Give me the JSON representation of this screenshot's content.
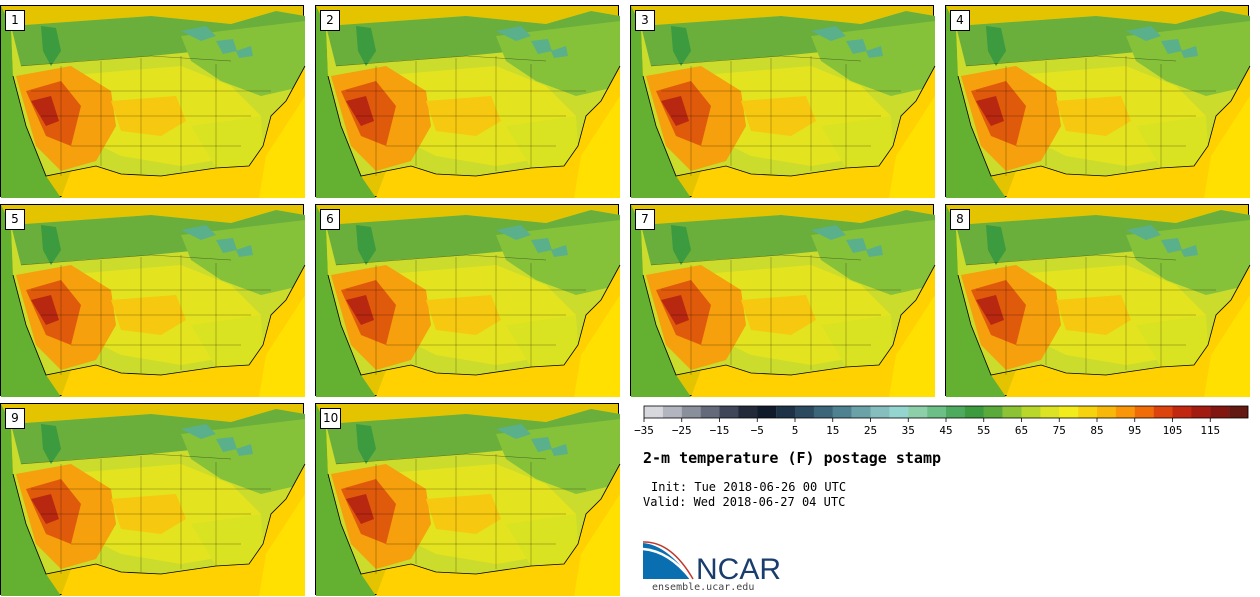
{
  "members": [
    "1",
    "2",
    "3",
    "4",
    "5",
    "6",
    "7",
    "8",
    "9",
    "10"
  ],
  "product": {
    "title": "2-m temperature (F) postage stamp",
    "init": "Init: Tue 2018-06-26 00 UTC",
    "valid": "Valid: Wed 2018-06-27 04 UTC"
  },
  "colorbar": {
    "tick_labels": [
      "−35",
      "−25",
      "−15",
      "−5",
      "5",
      "15",
      "25",
      "35",
      "45",
      "55",
      "65",
      "75",
      "85",
      "95",
      "105",
      "115"
    ],
    "colors": [
      "#d6d8de",
      "#b2b5bf",
      "#8a8f9c",
      "#646a7a",
      "#3f4657",
      "#222a3a",
      "#0f1a2b",
      "#1e3247",
      "#2b4a60",
      "#3b6578",
      "#4f8290",
      "#6ba2a8",
      "#86bebd",
      "#94d6cf",
      "#8ccfa8",
      "#6cbf87",
      "#4eaa5e",
      "#3c9a3f",
      "#5aa93b",
      "#8cc334",
      "#b9d72b",
      "#dbe324",
      "#f3ec1c",
      "#f5d30f",
      "#f7b70b",
      "#f89508",
      "#ef6c09",
      "#dd430c",
      "#c1280f",
      "#a31c12",
      "#821712",
      "#631811"
    ]
  },
  "logo": {
    "text": "NCAR",
    "url": "ensemble.ucar.edu"
  },
  "colors": {
    "panel_background": "#e4c400",
    "ocean_gulf": "#ffd100",
    "atlantic": "#ffe000",
    "pacific": "#64b030"
  }
}
